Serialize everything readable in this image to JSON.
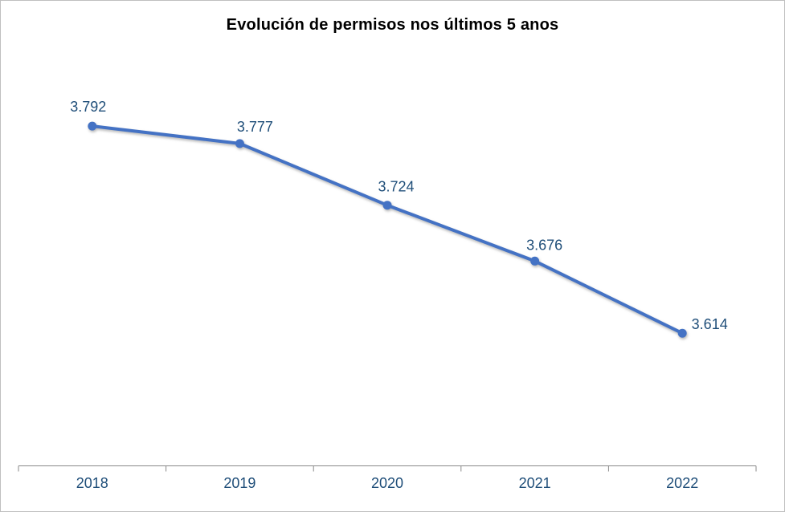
{
  "chart": {
    "title": "Evolución de permisos nos últimos 5 anos"
  },
  "chart_data": {
    "type": "line",
    "title": "Evolución de permisos nos últimos 5 anos",
    "categories": [
      "2018",
      "2019",
      "2020",
      "2021",
      "2022"
    ],
    "values": [
      3792,
      3777,
      3724,
      3676,
      3614
    ],
    "point_labels": [
      "3.792",
      "3.777",
      "3.724",
      "3.676",
      "3.614"
    ],
    "xlabel": "",
    "ylabel": "",
    "ylim": [
      3500,
      3850
    ],
    "grid": false,
    "legend": "none",
    "y_axis_visible": false,
    "marker": "circle"
  },
  "colors": {
    "line": "#4472C4",
    "marker": "#4472C4",
    "label_text": "#1F4E79",
    "axis_line": "#898989",
    "border": "#BFBFBF",
    "title_text": "#000000",
    "background": "#FFFFFF"
  }
}
